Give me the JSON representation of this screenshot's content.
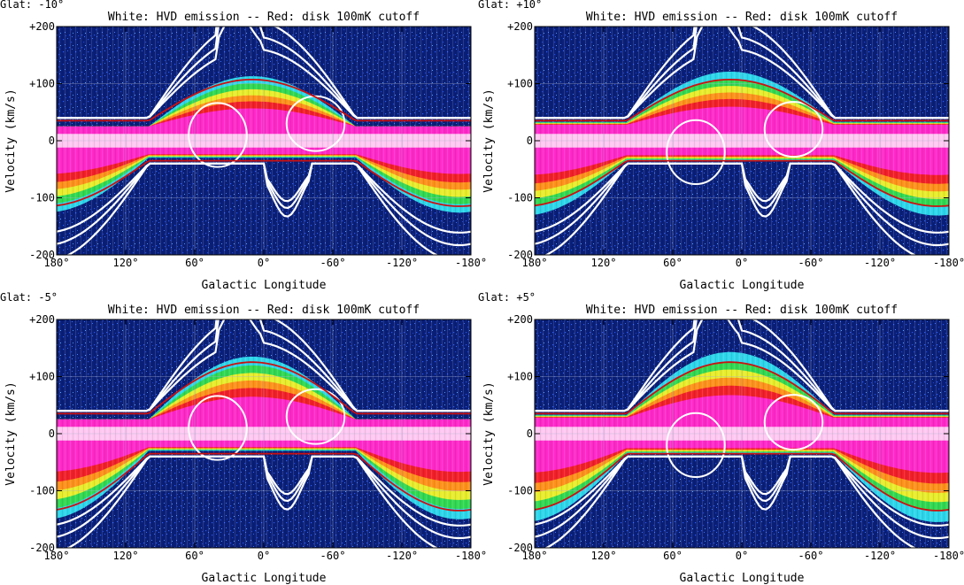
{
  "chart_data": [
    {
      "type": "heatmap",
      "panel_label": "Glat: -10°",
      "title": "White: HVD emission -- Red: disk 100mK cutoff",
      "xlabel": "Galactic Longitude",
      "ylabel": "Velocity (km/s)",
      "xlim": [
        180,
        -180
      ],
      "ylim": [
        -200,
        200
      ],
      "x_ticks": [
        180,
        120,
        60,
        0,
        -60,
        -120,
        -180
      ],
      "x_tick_labels": [
        "180°",
        "120°",
        "60°",
        "0°",
        "-60°",
        "-120°",
        "-180°"
      ],
      "y_ticks": [
        200,
        100,
        0,
        -100,
        -200
      ],
      "y_tick_labels": [
        "+200",
        "+100",
        "0",
        "-100",
        "-200"
      ],
      "grid": true,
      "latitude": -10
    },
    {
      "type": "heatmap",
      "panel_label": "Glat: +10°",
      "title": "White: HVD emission -- Red: disk 100mK cutoff",
      "xlabel": "Galactic Longitude",
      "ylabel": "Velocity (km/s)",
      "xlim": [
        180,
        -180
      ],
      "ylim": [
        -200,
        200
      ],
      "x_ticks": [
        180,
        120,
        60,
        0,
        -60,
        -120,
        -180
      ],
      "x_tick_labels": [
        "180°",
        "120°",
        "60°",
        "0°",
        "-60°",
        "-120°",
        "-180°"
      ],
      "y_ticks": [
        200,
        100,
        0,
        -100,
        -200
      ],
      "y_tick_labels": [
        "+200",
        "+100",
        "0",
        "-100",
        "-200"
      ],
      "grid": true,
      "latitude": 10
    },
    {
      "type": "heatmap",
      "panel_label": "Glat: -5°",
      "title": "White: HVD emission -- Red: disk 100mK cutoff",
      "xlabel": "Galactic Longitude",
      "ylabel": "Velocity (km/s)",
      "xlim": [
        180,
        -180
      ],
      "ylim": [
        -200,
        200
      ],
      "x_ticks": [
        180,
        120,
        60,
        0,
        -60,
        -120,
        -180
      ],
      "x_tick_labels": [
        "180°",
        "120°",
        "60°",
        "0°",
        "-60°",
        "-120°",
        "-180°"
      ],
      "y_ticks": [
        200,
        100,
        0,
        -100,
        -200
      ],
      "y_tick_labels": [
        "+200",
        "+100",
        "0",
        "-100",
        "-200"
      ],
      "grid": true,
      "latitude": -5
    },
    {
      "type": "heatmap",
      "panel_label": "Glat: +5°",
      "title": "White: HVD emission -- Red: disk 100mK cutoff",
      "xlabel": "Galactic Longitude",
      "ylabel": "Velocity (km/s)",
      "xlim": [
        180,
        -180
      ],
      "ylim": [
        -200,
        200
      ],
      "x_ticks": [
        180,
        120,
        60,
        0,
        -60,
        -120,
        -180
      ],
      "x_tick_labels": [
        "180°",
        "120°",
        "60°",
        "0°",
        "-60°",
        "-120°",
        "-180°"
      ],
      "y_ticks": [
        200,
        100,
        0,
        -100,
        -200
      ],
      "y_tick_labels": [
        "+200",
        "+100",
        "0",
        "-100",
        "-200"
      ],
      "grid": true,
      "latitude": 5
    }
  ],
  "colors": {
    "background": "#0a1f78",
    "noise": "#2a5cff",
    "cyan": "#2fe0f0",
    "green": "#32d84a",
    "yellow": "#f2ee2a",
    "orange": "#ff8c1a",
    "red": "#f01a2a",
    "magenta": "#ff2ad2",
    "pink": "#ffc8f2",
    "hvd_contour": "#ffffff",
    "disk_cutoff": "#cc1010",
    "grid": "#a8b0d0"
  }
}
